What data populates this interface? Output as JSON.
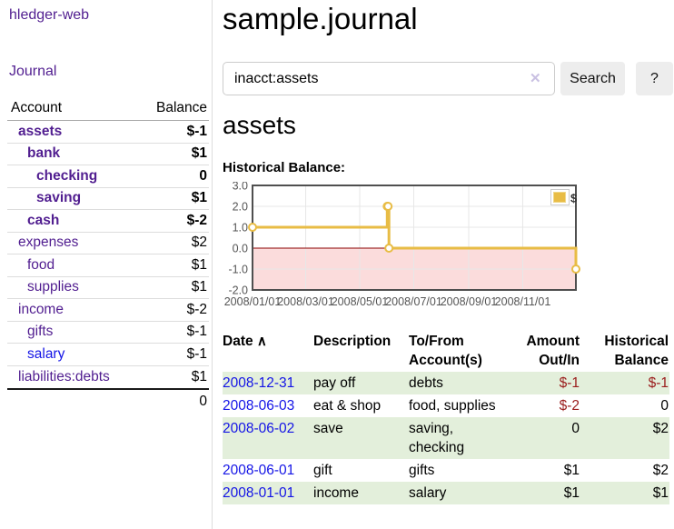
{
  "app_title": "hledger-web",
  "colors": {
    "link_purple": "#511e90",
    "link_blue": "#1414e6",
    "negative_strong": "#9a1c1c",
    "negative_soft": "#c16a6a",
    "row_stripe_green": "#e3efdb",
    "chart_line_yellow": "#e8bc45",
    "chart_negative_pink": "#fbdcdc",
    "chart_zero_line": "#8b0000"
  },
  "sidebar": {
    "journal_link": "Journal",
    "accounts": {
      "headers": {
        "account": "Account",
        "balance": "Balance"
      },
      "rows": [
        {
          "account": "assets",
          "balance": "$-1",
          "depth": 1,
          "bold": true,
          "neg": "strong"
        },
        {
          "account": "bank",
          "balance": "$1",
          "depth": 2,
          "bold": true
        },
        {
          "account": "checking",
          "balance": "0",
          "depth": 3,
          "bold": true
        },
        {
          "account": "saving",
          "balance": "$1",
          "depth": 3,
          "bold": true
        },
        {
          "account": "cash",
          "balance": "$-2",
          "depth": 2,
          "bold": true,
          "neg": "strong"
        },
        {
          "account": "expenses",
          "balance": "$2",
          "depth": 1
        },
        {
          "account": "food",
          "balance": "$1",
          "depth": 2
        },
        {
          "account": "supplies",
          "balance": "$1",
          "depth": 2
        },
        {
          "account": "income",
          "balance": "$-2",
          "depth": 1,
          "neg": "soft"
        },
        {
          "account": "gifts",
          "balance": "$-1",
          "depth": 2,
          "neg": "soft"
        },
        {
          "account": "salary",
          "balance": "$-1",
          "depth": 2,
          "neg": "soft",
          "blue": true
        },
        {
          "account": "liabilities:debts",
          "balance": "$1",
          "depth": 1
        }
      ],
      "total": "0"
    }
  },
  "main": {
    "title": "sample.journal",
    "search": {
      "value": "inacct:assets",
      "clear_icon": "✕",
      "search_button": "Search",
      "help_button": "?"
    },
    "account_heading": "assets",
    "chart_label": "Historical Balance:"
  },
  "chart_data": {
    "type": "line",
    "step": true,
    "title": "Historical Balance:",
    "series": [
      {
        "name": "$",
        "points": [
          [
            "2008-01-01",
            1
          ],
          [
            "2008-06-01",
            2
          ],
          [
            "2008-06-02",
            2
          ],
          [
            "2008-06-03",
            0
          ],
          [
            "2008-12-31",
            -1
          ]
        ]
      }
    ],
    "x_range": [
      "2008-01-01",
      "2008-12-31"
    ],
    "x_ticks": [
      "2008/01/01",
      "2008/03/01",
      "2008/05/01",
      "2008/07/01",
      "2008/09/01",
      "2008/11/01"
    ],
    "y_ticks": [
      "3.0",
      "2.0",
      "1.0",
      "0.0",
      "-1.0",
      "-2.0"
    ],
    "ylim": [
      -2,
      3
    ],
    "grid": true,
    "legend": {
      "label": "$",
      "position": "top-right"
    },
    "negative_region_shaded": true
  },
  "register": {
    "headers": {
      "date": "Date",
      "sort_icon": "∧",
      "description": "Description",
      "accounts": "To/From Account(s)",
      "amount": "Amount Out/In",
      "balance": "Historical Balance"
    },
    "rows": [
      {
        "date": "2008-12-31",
        "description": "pay off",
        "accounts": "debts",
        "amount": "$-1",
        "balance": "$-1"
      },
      {
        "date": "2008-06-03",
        "description": "eat & shop",
        "accounts": "food, supplies",
        "amount": "$-2",
        "balance": "0"
      },
      {
        "date": "2008-06-02",
        "description": "save",
        "accounts": "saving, checking",
        "amount": "0",
        "balance": "$2"
      },
      {
        "date": "2008-06-01",
        "description": "gift",
        "accounts": "gifts",
        "amount": "$1",
        "balance": "$2"
      },
      {
        "date": "2008-01-01",
        "description": "income",
        "accounts": "salary",
        "amount": "$1",
        "balance": "$1"
      }
    ]
  }
}
